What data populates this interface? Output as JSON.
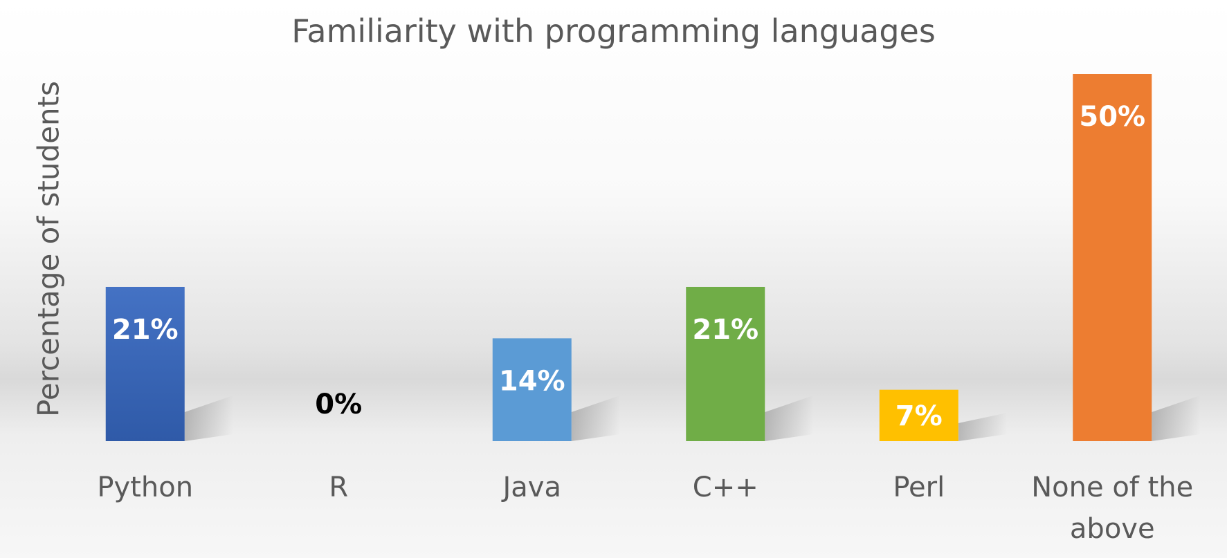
{
  "chart_data": {
    "type": "bar",
    "title": "Familiarity with programming languages",
    "xlabel": "",
    "ylabel": "Percentage of students",
    "categories": [
      "Python",
      "R",
      "Java",
      "C++",
      "Perl",
      "None of the above"
    ],
    "values": [
      21,
      0,
      14,
      21,
      7,
      50
    ],
    "data_labels": [
      "21%",
      "0%",
      "14%",
      "21%",
      "7%",
      "50%"
    ],
    "colors": [
      "#3f6fc4",
      "#4472c4",
      "#5b9bd5",
      "#70ad47",
      "#ffc000",
      "#ed7d31"
    ],
    "ylim": [
      0,
      50
    ],
    "grid": false,
    "legend": "none"
  }
}
